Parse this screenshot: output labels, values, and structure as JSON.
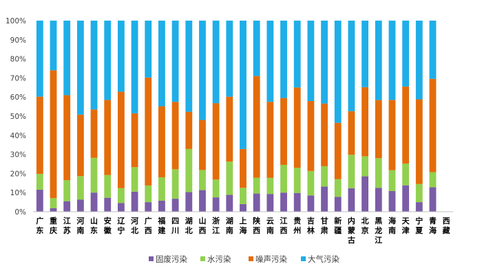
{
  "chart_data": {
    "type": "bar",
    "stacked": true,
    "percent_axis": true,
    "categories": [
      "广东",
      "重庆",
      "江苏",
      "河南",
      "山东",
      "安徽",
      "辽宁",
      "河北",
      "广西",
      "福建",
      "四川",
      "湖北",
      "山西",
      "浙江",
      "湖南",
      "上海",
      "陕西",
      "云南",
      "江西",
      "贵州",
      "吉林",
      "甘肃",
      "新疆",
      "内蒙古",
      "北京",
      "黑龙江",
      "海南",
      "天津",
      "宁夏",
      "青海",
      "西藏"
    ],
    "series": [
      {
        "name": "固废污染",
        "color": "#7b5ca6",
        "values": [
          11.5,
          1.8,
          5.5,
          6.3,
          10.0,
          7.3,
          4.5,
          10.5,
          5.0,
          5.8,
          6.8,
          10.3,
          11.3,
          7.5,
          8.8,
          4.0,
          9.5,
          9.3,
          10.0,
          9.8,
          8.5,
          13.2,
          7.8,
          12.3,
          18.5,
          12.5,
          10.8,
          13.8,
          5.0,
          12.8,
          0
        ]
      },
      {
        "name": "水污染",
        "color": "#92d050",
        "values": [
          8.3,
          5.3,
          11.0,
          12.3,
          18.2,
          11.9,
          7.8,
          12.8,
          8.7,
          12.2,
          15.4,
          22.5,
          10.5,
          9.3,
          17.4,
          8.5,
          8.3,
          8.4,
          14.5,
          13.2,
          12.8,
          10.6,
          9.2,
          17.5,
          10.5,
          15.5,
          10.9,
          11.4,
          9.5,
          7.9,
          0
        ]
      },
      {
        "name": "噪声污染",
        "color": "#e46c0a",
        "values": [
          40.4,
          66.9,
          44.5,
          32.2,
          25.3,
          39.3,
          50.5,
          28.2,
          56.5,
          37.2,
          35.3,
          19.5,
          26.2,
          40.0,
          34.0,
          20.3,
          53.2,
          39.8,
          35.0,
          42.0,
          36.6,
          32.8,
          29.5,
          22.8,
          36.2,
          30.4,
          36.8,
          40.3,
          44.3,
          48.8,
          0
        ]
      },
      {
        "name": "大气污染",
        "color": "#1faee8",
        "values": [
          39.8,
          26.0,
          39.0,
          49.2,
          46.5,
          41.5,
          37.2,
          48.5,
          29.8,
          44.8,
          42.5,
          47.7,
          52.0,
          43.2,
          39.8,
          67.2,
          29.0,
          42.5,
          40.5,
          35.0,
          42.1,
          43.4,
          53.5,
          47.4,
          34.8,
          41.6,
          41.5,
          34.5,
          41.2,
          30.5,
          0
        ]
      }
    ],
    "ylim": [
      0,
      100
    ],
    "ytick_labels": [
      "0%",
      "10%",
      "20%",
      "30%",
      "40%",
      "50%",
      "60%",
      "70%",
      "80%",
      "90%",
      "100%"
    ],
    "legend_position": "bottom",
    "grid": false
  }
}
